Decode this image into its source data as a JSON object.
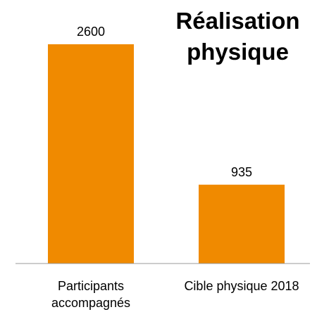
{
  "chart_data": {
    "type": "bar",
    "title": "Réalisation physique",
    "categories": [
      "Participants accompagnés",
      "Cible physique 2018"
    ],
    "values": [
      2600,
      935
    ],
    "color": "#f08a00",
    "ylim": [
      0,
      2600
    ]
  }
}
